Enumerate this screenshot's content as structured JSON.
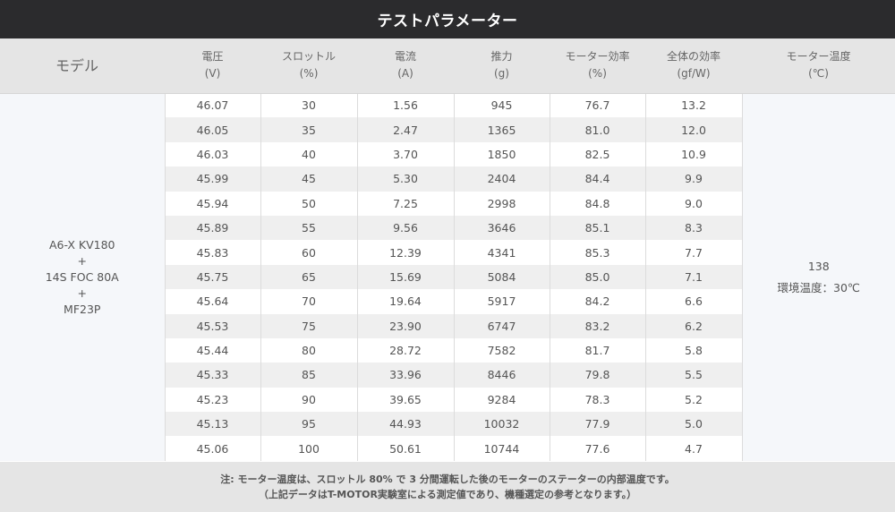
{
  "title": "テストパラメーター",
  "headers": {
    "model": "モデル",
    "columns": [
      {
        "label": "電圧",
        "unit": "(V)"
      },
      {
        "label": "スロットル",
        "unit": "(%)"
      },
      {
        "label": "電流",
        "unit": "(A)"
      },
      {
        "label": "推力",
        "unit": "(g)"
      },
      {
        "label": "モーター効率",
        "unit": "(%)"
      },
      {
        "label": "全体の効率",
        "unit": "(gf/W)"
      }
    ],
    "temperature": {
      "label": "モーター温度",
      "unit": "(℃)"
    }
  },
  "model": [
    "A6-X KV180",
    "+",
    "14S FOC 80A",
    "+",
    "MF23P"
  ],
  "temperature": {
    "value": "138",
    "ambient": "環境温度：30℃"
  },
  "rows": [
    [
      "46.07",
      "30",
      "1.56",
      "945",
      "76.7",
      "13.2"
    ],
    [
      "46.05",
      "35",
      "2.47",
      "1365",
      "81.0",
      "12.0"
    ],
    [
      "46.03",
      "40",
      "3.70",
      "1850",
      "82.5",
      "10.9"
    ],
    [
      "45.99",
      "45",
      "5.30",
      "2404",
      "84.4",
      "9.9"
    ],
    [
      "45.94",
      "50",
      "7.25",
      "2998",
      "84.8",
      "9.0"
    ],
    [
      "45.89",
      "55",
      "9.56",
      "3646",
      "85.1",
      "8.3"
    ],
    [
      "45.83",
      "60",
      "12.39",
      "4341",
      "85.3",
      "7.7"
    ],
    [
      "45.75",
      "65",
      "15.69",
      "5084",
      "85.0",
      "7.1"
    ],
    [
      "45.64",
      "70",
      "19.64",
      "5917",
      "84.2",
      "6.6"
    ],
    [
      "45.53",
      "75",
      "23.90",
      "6747",
      "83.2",
      "6.2"
    ],
    [
      "45.44",
      "80",
      "28.72",
      "7582",
      "81.7",
      "5.8"
    ],
    [
      "45.33",
      "85",
      "33.96",
      "8446",
      "79.8",
      "5.5"
    ],
    [
      "45.23",
      "90",
      "39.65",
      "9284",
      "78.3",
      "5.2"
    ],
    [
      "45.13",
      "95",
      "44.93",
      "10032",
      "77.9",
      "5.0"
    ],
    [
      "45.06",
      "100",
      "50.61",
      "10744",
      "77.6",
      "4.7"
    ]
  ],
  "footnote": {
    "line1": "注: モーター温度は、スロットル 80% で 3 分間運転した後のモーターのステーターの内部温度です。",
    "line2": "（上記データはT-MOTOR実験室による測定値であり、機種選定の参考となります。）"
  }
}
